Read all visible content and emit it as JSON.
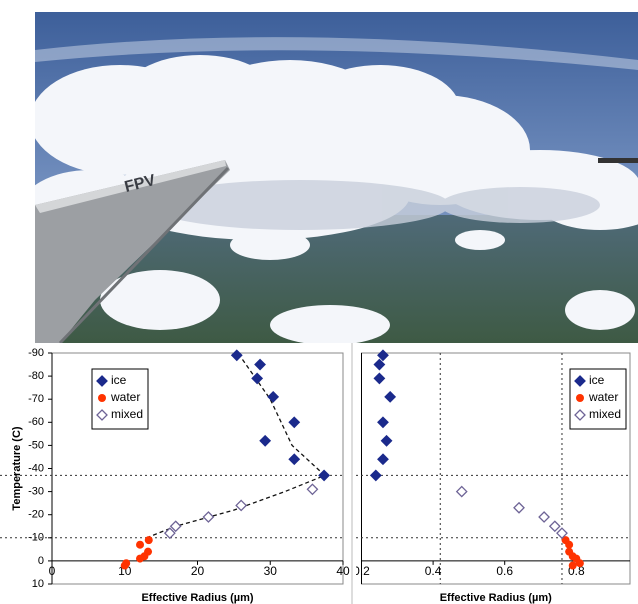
{
  "photo": {
    "wing_marking": "FPV"
  },
  "chart_data": [
    {
      "type": "scatter",
      "y_title": "Temperature (C)",
      "x_title": "Effective Radius (µm)",
      "xlim": [
        0,
        40
      ],
      "xticks": [
        0,
        10,
        20,
        30,
        40
      ],
      "ylim": [
        10,
        -90
      ],
      "yticks": [
        -90,
        -80,
        -70,
        -60,
        -50,
        -40,
        -30,
        -20,
        -10,
        0,
        10
      ],
      "hlines": [
        -37,
        -10
      ],
      "vlines": [],
      "legend": "top-left",
      "series": [
        {
          "name": "ice",
          "color": "#1b2a8c",
          "marker": "diamond",
          "x": [
            25.4,
            28.6,
            28.2,
            30.4,
            33.3,
            29.3,
            33.3,
            37.4
          ],
          "values": [
            -89,
            -85,
            -79,
            -71,
            -60,
            -52,
            -44,
            -37
          ]
        },
        {
          "name": "water",
          "color": "#ff3300",
          "marker": "circle",
          "x": [
            13.3,
            12.1,
            13.2,
            12.7,
            12.1,
            10.2,
            10
          ],
          "values": [
            -9,
            -7,
            -4,
            -2,
            -1,
            1,
            2
          ]
        },
        {
          "name": "mixed",
          "color": "#6e6496",
          "marker": "open-diamond",
          "x": [
            16.2,
            17,
            21.5,
            26,
            35.8
          ],
          "values": [
            -12,
            -15,
            -19,
            -24,
            -31
          ]
        }
      ],
      "fit": {
        "color": "#111111",
        "x": [
          13,
          17,
          25,
          32,
          37.5,
          33,
          30,
          26
        ],
        "y": [
          -10,
          -15,
          -22,
          -30,
          -37,
          -50,
          -70,
          -88
        ]
      }
    },
    {
      "type": "scatter",
      "x_title": "Effective Radius (µm)",
      "xlim": [
        0.2,
        0.95
      ],
      "xticks": [
        0.2,
        0.4,
        0.6,
        0.8
      ],
      "ylim": [
        10,
        -90
      ],
      "hlines": [
        -37,
        -10
      ],
      "vlines": [
        0.42,
        0.76
      ],
      "legend": "top-right",
      "series": [
        {
          "name": "ice",
          "color": "#1b2a8c",
          "marker": "diamond",
          "x": [
            0.26,
            0.25,
            0.25,
            0.28,
            0.26,
            0.27,
            0.26,
            0.24
          ],
          "values": [
            -89,
            -85,
            -79,
            -71,
            -60,
            -52,
            -44,
            -37
          ]
        },
        {
          "name": "water",
          "color": "#ff3300",
          "marker": "circle",
          "x": [
            0.77,
            0.78,
            0.78,
            0.79,
            0.8,
            0.81,
            0.79
          ],
          "values": [
            -9,
            -7,
            -4,
            -2,
            -1,
            1,
            2
          ]
        },
        {
          "name": "mixed",
          "color": "#6e6496",
          "marker": "open-diamond",
          "x": [
            0.48,
            0.64,
            0.71,
            0.74,
            0.76
          ],
          "values": [
            -30,
            -23,
            -19,
            -15,
            -12
          ]
        }
      ]
    }
  ]
}
